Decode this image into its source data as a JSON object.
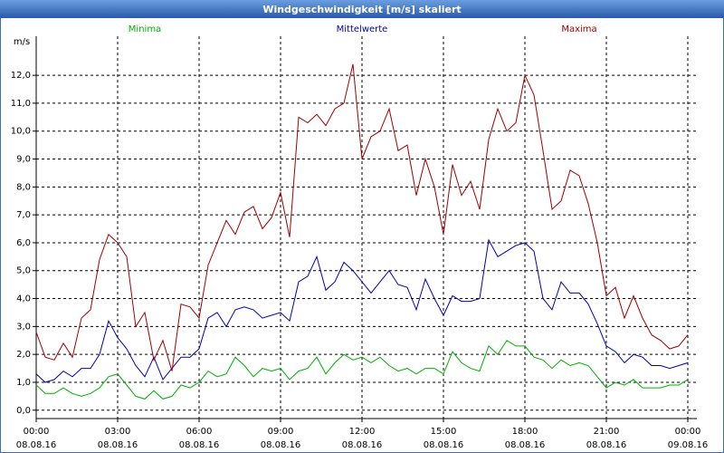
{
  "chart_data": {
    "type": "line",
    "title": "Windgeschwindigkeit [m/s] skaliert",
    "ylabel": "m/s",
    "x": [
      0,
      20,
      40,
      60,
      80,
      100,
      120,
      140,
      160,
      180,
      200,
      220,
      240,
      260,
      280,
      300,
      320,
      340,
      360,
      380,
      400,
      420,
      440,
      460,
      480,
      500,
      520,
      540,
      560,
      580,
      600,
      620,
      640,
      660,
      680,
      700,
      720,
      740,
      760,
      780,
      800,
      820,
      840,
      860,
      880,
      900,
      920,
      940,
      960,
      980,
      1000,
      1020,
      1040,
      1060,
      1080,
      1100,
      1120,
      1140,
      1160,
      1180,
      1200,
      1220,
      1240,
      1260,
      1280,
      1300,
      1320,
      1340,
      1360,
      1380,
      1400,
      1420,
      1440
    ],
    "series": [
      {
        "name": "Minima",
        "color": "#00b000",
        "values": [
          0.9,
          0.6,
          0.6,
          0.8,
          0.6,
          0.5,
          0.6,
          0.8,
          1.2,
          1.3,
          0.9,
          0.5,
          0.4,
          0.7,
          0.4,
          0.5,
          0.9,
          0.8,
          1.0,
          1.4,
          1.2,
          1.3,
          1.9,
          1.6,
          1.2,
          1.5,
          1.4,
          1.5,
          1.1,
          1.4,
          1.5,
          1.9,
          1.3,
          1.7,
          2.0,
          1.8,
          1.9,
          1.7,
          1.9,
          1.6,
          1.4,
          1.5,
          1.3,
          1.5,
          1.5,
          1.3,
          2.1,
          1.7,
          1.5,
          1.4,
          2.3,
          2.0,
          2.5,
          2.3,
          2.3,
          1.9,
          1.8,
          1.5,
          1.8,
          1.6,
          1.7,
          1.6,
          1.2,
          0.8,
          1.0,
          0.9,
          1.1,
          0.8,
          0.8,
          0.8,
          0.9,
          0.9,
          1.1
        ]
      },
      {
        "name": "Mittelwerte",
        "color": "#0000b0",
        "values": [
          1.3,
          1.0,
          1.1,
          1.4,
          1.2,
          1.5,
          1.5,
          2.0,
          3.2,
          2.6,
          2.2,
          1.6,
          1.2,
          1.9,
          1.1,
          1.5,
          1.9,
          1.9,
          2.2,
          3.3,
          3.5,
          3.0,
          3.6,
          3.7,
          3.6,
          3.3,
          3.4,
          3.5,
          3.2,
          4.6,
          4.8,
          5.5,
          4.3,
          4.6,
          5.3,
          5.0,
          4.6,
          4.2,
          4.6,
          5.0,
          4.5,
          4.4,
          3.6,
          4.7,
          4.0,
          3.4,
          4.1,
          3.9,
          3.9,
          4.0,
          6.1,
          5.5,
          5.7,
          5.9,
          6.0,
          5.7,
          4.0,
          3.6,
          4.6,
          4.2,
          4.2,
          3.8,
          3.1,
          2.3,
          2.1,
          1.7,
          2.0,
          1.9,
          1.6,
          1.6,
          1.5,
          1.6,
          1.7
        ]
      },
      {
        "name": "Maxima",
        "color": "#a00000",
        "values": [
          2.8,
          1.9,
          1.8,
          2.4,
          1.9,
          3.3,
          3.6,
          5.4,
          6.3,
          6.0,
          5.5,
          3.0,
          3.5,
          1.8,
          2.5,
          1.4,
          3.8,
          3.7,
          3.3,
          5.2,
          6.0,
          6.8,
          6.3,
          7.1,
          7.3,
          6.5,
          6.9,
          7.8,
          6.2,
          10.5,
          10.3,
          10.6,
          10.2,
          10.8,
          11.0,
          12.4,
          9.0,
          9.8,
          10.0,
          10.8,
          9.3,
          9.5,
          7.7,
          9.0,
          8.0,
          6.3,
          8.8,
          7.7,
          8.2,
          7.2,
          9.7,
          10.8,
          10.0,
          10.3,
          12.0,
          11.3,
          9.3,
          7.2,
          7.5,
          8.6,
          8.4,
          7.4,
          6.0,
          4.1,
          4.4,
          3.3,
          4.1,
          3.3,
          2.7,
          2.5,
          2.2,
          2.3,
          2.7
        ]
      }
    ],
    "xlim": [
      0,
      1440
    ],
    "xticks": [
      {
        "value": 0,
        "label": "00:00"
      },
      {
        "value": 180,
        "label": "03:00"
      },
      {
        "value": 360,
        "label": "06:00"
      },
      {
        "value": 540,
        "label": "09:00"
      },
      {
        "value": 720,
        "label": "12:00"
      },
      {
        "value": 900,
        "label": "15:00"
      },
      {
        "value": 1080,
        "label": "18:00"
      },
      {
        "value": 1260,
        "label": "21:00"
      },
      {
        "value": 1440,
        "label": "00:00"
      }
    ],
    "xtick_dates": [
      "08.08.16",
      "08.08.16",
      "08.08.16",
      "08.08.16",
      "08.08.16",
      "08.08.16",
      "08.08.16",
      "08.08.16",
      "09.08.16"
    ],
    "ylim": [
      -0.3,
      13.4
    ],
    "yticks": [
      {
        "value": 0,
        "label": "0,0"
      },
      {
        "value": 1,
        "label": "1,0"
      },
      {
        "value": 2,
        "label": "2,0"
      },
      {
        "value": 3,
        "label": "3,0"
      },
      {
        "value": 4,
        "label": "4,0"
      },
      {
        "value": 5,
        "label": "5,0"
      },
      {
        "value": 6,
        "label": "6,0"
      },
      {
        "value": 7,
        "label": "7,0"
      },
      {
        "value": 8,
        "label": "8,0"
      },
      {
        "value": 9,
        "label": "9,0"
      },
      {
        "value": 10,
        "label": "10,0"
      },
      {
        "value": 11,
        "label": "11,0"
      },
      {
        "value": 12,
        "label": "12,0"
      }
    ],
    "grid": true
  }
}
